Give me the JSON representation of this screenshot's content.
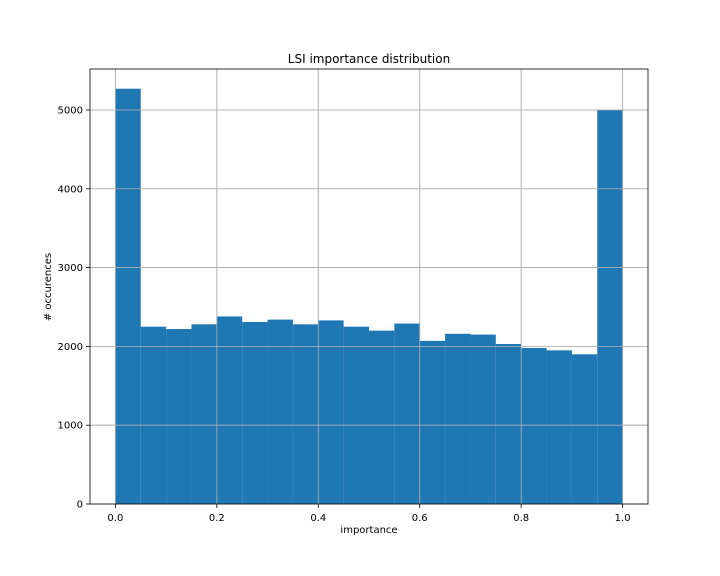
{
  "chart_data": {
    "type": "bar",
    "title": "LSI importance distribution",
    "xlabel": "importance",
    "ylabel": "# occurences",
    "xlim": [
      -0.05,
      1.05
    ],
    "ylim": [
      0,
      5520
    ],
    "grid": true,
    "bin_edges": [
      0.0,
      0.05,
      0.1,
      0.15,
      0.2,
      0.25,
      0.3,
      0.35,
      0.4,
      0.45,
      0.5,
      0.55,
      0.6,
      0.65,
      0.7,
      0.75,
      0.8,
      0.85,
      0.9,
      0.95,
      1.0
    ],
    "values": [
      5270,
      2250,
      2220,
      2280,
      2380,
      2310,
      2340,
      2280,
      2330,
      2250,
      2200,
      2290,
      2070,
      2160,
      2150,
      2030,
      1980,
      1950,
      1900,
      5000
    ],
    "xticks": [
      0.0,
      0.2,
      0.4,
      0.6,
      0.8,
      1.0
    ],
    "xtick_labels": [
      "0.0",
      "0.2",
      "0.4",
      "0.6",
      "0.8",
      "1.0"
    ],
    "yticks": [
      0,
      1000,
      2000,
      3000,
      4000,
      5000
    ],
    "ytick_labels": [
      "0",
      "1000",
      "2000",
      "3000",
      "4000",
      "5000"
    ],
    "bar_color": "#1f77b4",
    "grid_color": "#b0b0b0"
  }
}
